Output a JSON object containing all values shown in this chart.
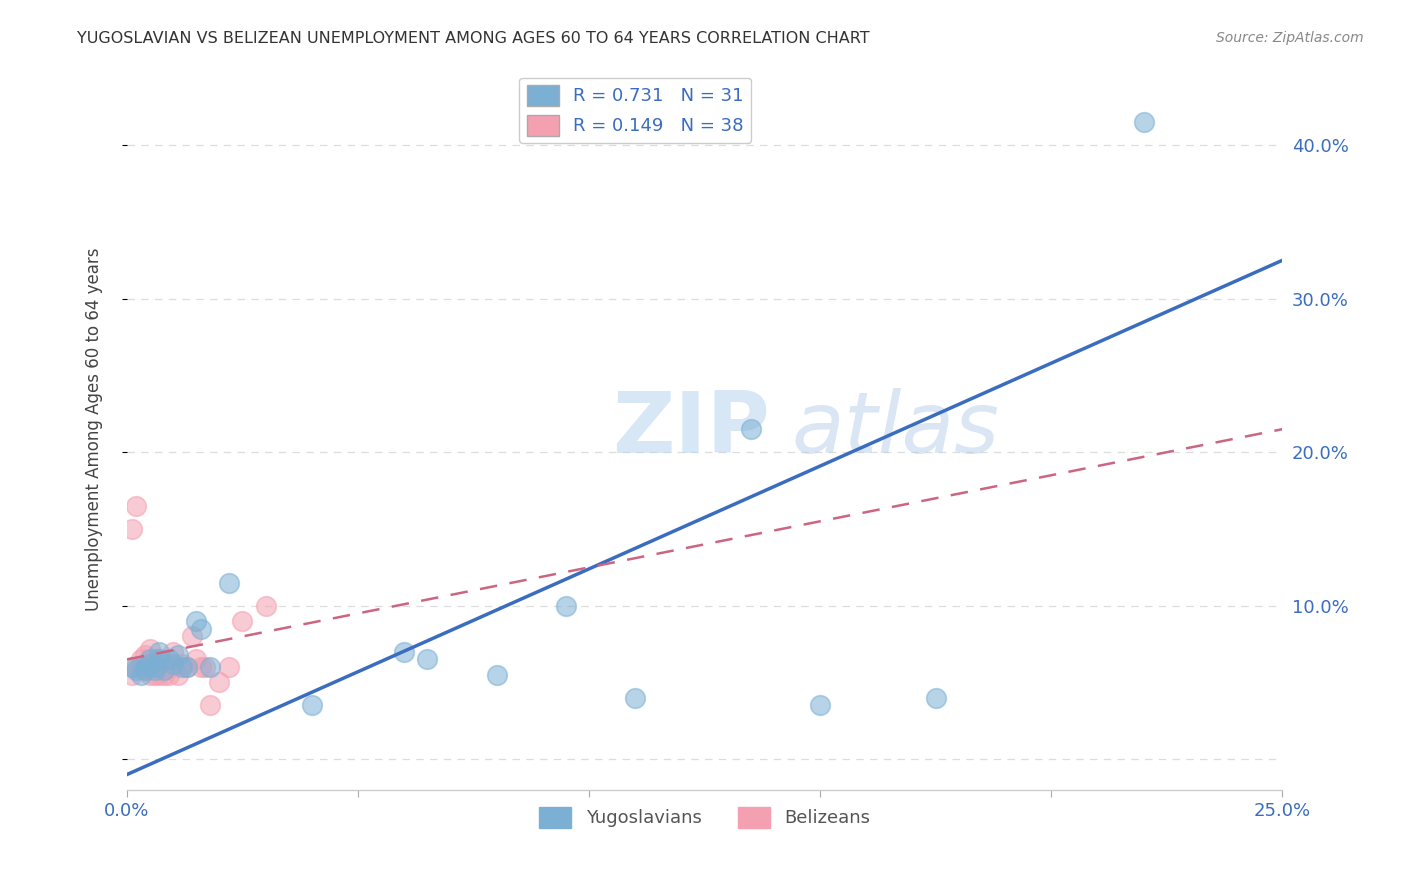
{
  "title": "YUGOSLAVIAN VS BELIZEAN UNEMPLOYMENT AMONG AGES 60 TO 64 YEARS CORRELATION CHART",
  "source": "Source: ZipAtlas.com",
  "ylabel": "Unemployment Among Ages 60 to 64 years",
  "xlabel": "",
  "xlim": [
    0.0,
    0.25
  ],
  "ylim": [
    -0.02,
    0.45
  ],
  "yticks": [
    0.0,
    0.1,
    0.2,
    0.3,
    0.4
  ],
  "ytick_labels_right": [
    "",
    "10.0%",
    "20.0%",
    "30.0%",
    "40.0%"
  ],
  "xticks": [
    0.0,
    0.05,
    0.1,
    0.15,
    0.2,
    0.25
  ],
  "xtick_labels": [
    "0.0%",
    "",
    "",
    "",
    "",
    "25.0%"
  ],
  "yug_R": 0.731,
  "yug_N": 31,
  "bel_R": 0.149,
  "bel_N": 38,
  "background_color": "#ffffff",
  "grid_color": "#dddddd",
  "yug_color": "#7bafd4",
  "yug_line_color": "#3a6dbf",
  "bel_color": "#f4a0b0",
  "bel_line_color": "#cc6680",
  "watermark_zip": "ZIP",
  "watermark_atlas": "atlas",
  "yug_line_x0": 0.0,
  "yug_line_y0": -0.01,
  "yug_line_x1": 0.25,
  "yug_line_y1": 0.325,
  "bel_line_x0": 0.0,
  "bel_line_y0": 0.065,
  "bel_line_x1": 0.25,
  "bel_line_y1": 0.215,
  "yug_scatter_x": [
    0.001,
    0.002,
    0.003,
    0.004,
    0.004,
    0.005,
    0.005,
    0.006,
    0.006,
    0.007,
    0.007,
    0.008,
    0.009,
    0.01,
    0.011,
    0.012,
    0.013,
    0.015,
    0.016,
    0.018,
    0.022,
    0.04,
    0.06,
    0.065,
    0.08,
    0.095,
    0.11,
    0.135,
    0.15,
    0.175,
    0.22
  ],
  "yug_scatter_y": [
    0.06,
    0.058,
    0.055,
    0.06,
    0.058,
    0.062,
    0.065,
    0.06,
    0.058,
    0.065,
    0.07,
    0.058,
    0.065,
    0.062,
    0.068,
    0.06,
    0.06,
    0.09,
    0.085,
    0.06,
    0.115,
    0.035,
    0.07,
    0.065,
    0.055,
    0.1,
    0.04,
    0.215,
    0.035,
    0.04,
    0.415
  ],
  "bel_scatter_x": [
    0.001,
    0.001,
    0.002,
    0.002,
    0.003,
    0.003,
    0.004,
    0.004,
    0.004,
    0.005,
    0.005,
    0.005,
    0.005,
    0.006,
    0.006,
    0.006,
    0.007,
    0.007,
    0.007,
    0.008,
    0.008,
    0.008,
    0.009,
    0.009,
    0.01,
    0.01,
    0.011,
    0.012,
    0.013,
    0.014,
    0.015,
    0.016,
    0.017,
    0.018,
    0.02,
    0.022,
    0.025,
    0.03
  ],
  "bel_scatter_y": [
    0.055,
    0.15,
    0.06,
    0.165,
    0.06,
    0.065,
    0.058,
    0.062,
    0.068,
    0.055,
    0.06,
    0.072,
    0.06,
    0.055,
    0.06,
    0.065,
    0.055,
    0.06,
    0.065,
    0.055,
    0.06,
    0.062,
    0.055,
    0.06,
    0.06,
    0.07,
    0.055,
    0.062,
    0.06,
    0.08,
    0.065,
    0.06,
    0.06,
    0.035,
    0.05,
    0.06,
    0.09,
    0.1
  ]
}
